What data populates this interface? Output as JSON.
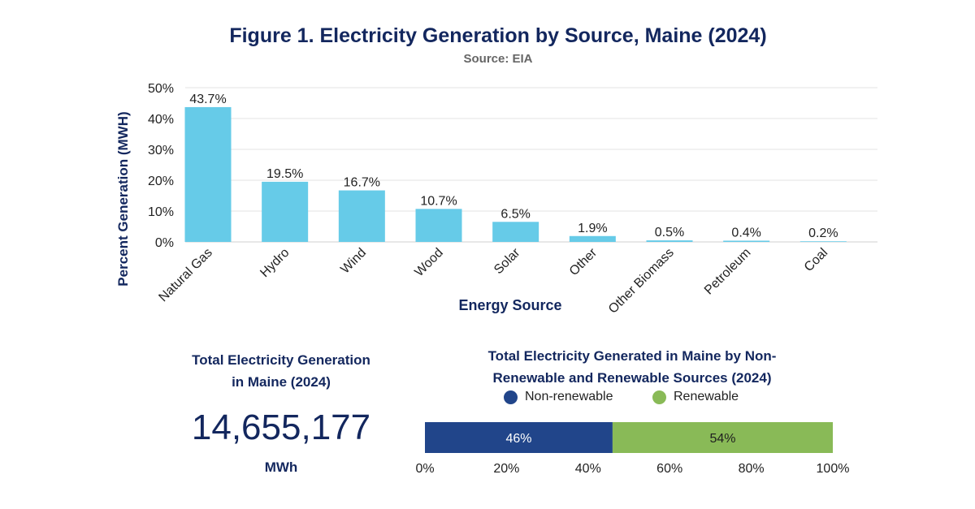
{
  "header": {
    "title": "Figure 1. Electricity Generation by Source, Maine (2024)",
    "source": "Source: EIA"
  },
  "chart_data": [
    {
      "type": "bar",
      "title": "Figure 1. Electricity Generation by Source, Maine (2024)",
      "subtitle": "Source: EIA",
      "xlabel": "Energy Source",
      "ylabel": "Percent Generation (MWH)",
      "categories": [
        "Natural Gas",
        "Hydro",
        "Wind",
        "Wood",
        "Solar",
        "Other",
        "Other Biomass",
        "Petroleum",
        "Coal"
      ],
      "values": [
        43.7,
        19.5,
        16.7,
        10.7,
        6.5,
        1.9,
        0.5,
        0.4,
        0.2
      ],
      "data_labels": [
        "43.7%",
        "19.5%",
        "16.7%",
        "10.7%",
        "6.5%",
        "1.9%",
        "0.5%",
        "0.4%",
        "0.2%"
      ],
      "ylim": [
        0,
        50
      ],
      "yticks": [
        "0%",
        "10%",
        "20%",
        "30%",
        "40%",
        "50%"
      ],
      "grid": true,
      "color": "#66cbe8"
    },
    {
      "type": "bar",
      "orientation": "horizontal-stacked",
      "title": "Total Electricity Generated in Maine by Non-Renewable and Renewable Sources (2024)",
      "title_lines": [
        "Total Electricity Generated in Maine by Non-",
        "Renewable and Renewable Sources (2024)"
      ],
      "series": [
        {
          "name": "Non-renewable",
          "values": [
            46
          ],
          "label": "46%",
          "color": "#21458a"
        },
        {
          "name": "Renewable",
          "values": [
            54
          ],
          "label": "54%",
          "color": "#89ba57"
        }
      ],
      "xlim": [
        0,
        100
      ],
      "xticks": [
        "0%",
        "20%",
        "40%",
        "60%",
        "80%",
        "100%"
      ],
      "legend": "top"
    }
  ],
  "total": {
    "title_line1": "Total Electricity Generation",
    "title_line2": "in Maine (2024)",
    "value": "14,655,177",
    "unit": "MWh"
  }
}
